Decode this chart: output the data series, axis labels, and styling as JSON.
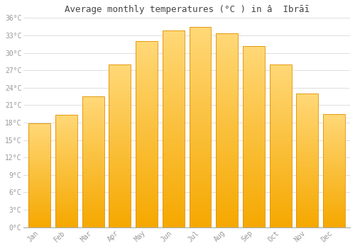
{
  "months": [
    "Jan",
    "Feb",
    "Mar",
    "Apr",
    "May",
    "Jun",
    "Jul",
    "Aug",
    "Sep",
    "Oct",
    "Nov",
    "Dec"
  ],
  "temperatures": [
    17.9,
    19.4,
    22.5,
    28.0,
    32.0,
    33.8,
    34.4,
    33.4,
    31.2,
    28.0,
    23.0,
    19.5
  ],
  "bar_color_center": "#FFD050",
  "bar_color_edge": "#F5A800",
  "background_color": "#FFFFFF",
  "grid_color": "#DDDDDD",
  "title": "Average monthly temperatures (°C ) in â  Ibrāī",
  "title_fontsize": 9,
  "ylim": [
    0,
    36
  ],
  "ytick_step": 3,
  "tick_label_color": "#999999",
  "font_family": "monospace",
  "tick_fontsize": 7
}
